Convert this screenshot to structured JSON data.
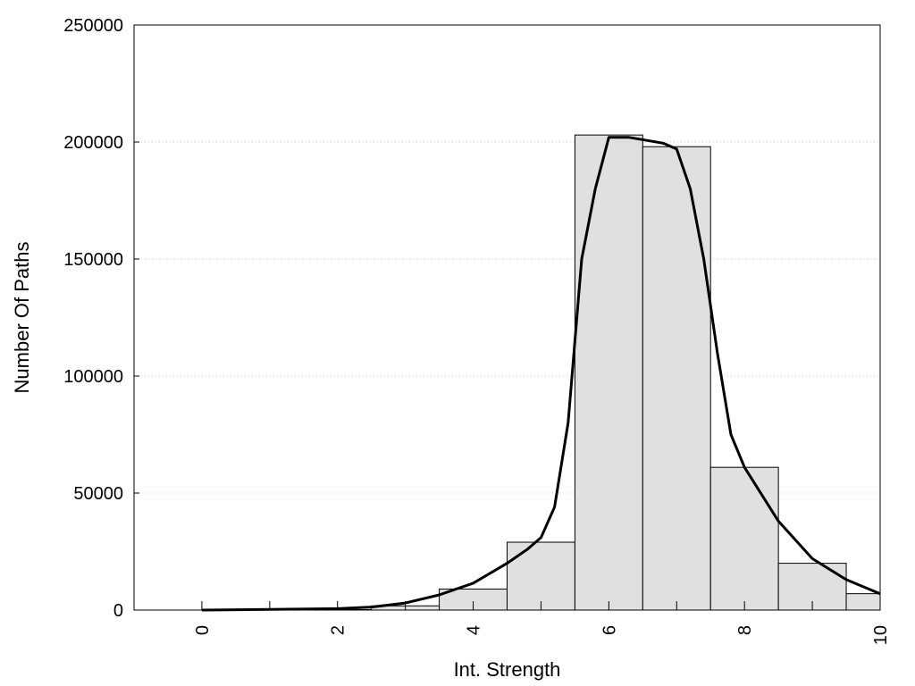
{
  "chart_data": {
    "type": "bar",
    "xlabel": "Int. Strength",
    "ylabel": "Number Of Paths",
    "xlim": [
      -1,
      10
    ],
    "ylim": [
      0,
      250000
    ],
    "x_ticks": [
      0,
      2,
      4,
      6,
      8,
      10
    ],
    "x_tick_labels": [
      "0",
      "2",
      "4",
      "6",
      "8",
      "10"
    ],
    "y_ticks": [
      0,
      50000,
      100000,
      150000,
      200000,
      250000
    ],
    "y_tick_labels": [
      "0",
      "50000",
      "100000",
      "150000",
      "200000",
      "250000"
    ],
    "grid": "horizontal dotted",
    "bar_width": 1,
    "x": [
      0,
      1,
      2,
      3,
      4,
      5,
      6,
      7,
      8,
      9,
      10
    ],
    "values": [
      0,
      0,
      200,
      1800,
      9000,
      29000,
      203000,
      198000,
      61000,
      20000,
      7000
    ],
    "bar_fill": "#e0e0e0",
    "fit_curve": {
      "x": [
        0,
        1,
        2,
        2.5,
        3,
        3.5,
        4,
        4.5,
        4.8,
        5.0,
        5.2,
        5.4,
        5.6,
        5.8,
        6.0,
        6.3,
        6.6,
        6.8,
        7.0,
        7.2,
        7.4,
        7.6,
        7.8,
        8.0,
        8.5,
        9.0,
        9.5,
        10.0
      ],
      "y": [
        0,
        300,
        600,
        1300,
        3000,
        6500,
        11500,
        20000,
        26000,
        31000,
        44000,
        80000,
        150000,
        180000,
        202000,
        202000,
        200500,
        199500,
        197000,
        180000,
        150000,
        110000,
        75000,
        61000,
        38000,
        22000,
        13000,
        7000
      ]
    },
    "curve_color": "#000000"
  }
}
